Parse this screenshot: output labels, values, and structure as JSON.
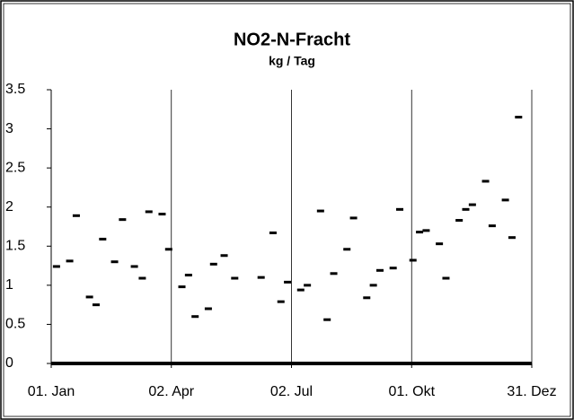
{
  "chart_data": {
    "type": "scatter",
    "title": "NO2-N-Fracht",
    "subtitle": "kg / Tag",
    "x": [
      5,
      15,
      20,
      30,
      35,
      40,
      49,
      55,
      64,
      70,
      75,
      85,
      90,
      100,
      105,
      110,
      120,
      124,
      132,
      140,
      160,
      169,
      175,
      180,
      190,
      195,
      205,
      210,
      215,
      225,
      230,
      240,
      245,
      250,
      260,
      265,
      275,
      280,
      285,
      295,
      300,
      310,
      315,
      320,
      330,
      335,
      345,
      350,
      355
    ],
    "values": [
      1.24,
      1.31,
      1.89,
      0.85,
      0.75,
      1.59,
      1.3,
      1.84,
      1.24,
      1.09,
      1.94,
      1.91,
      1.46,
      0.98,
      1.13,
      0.6,
      0.7,
      1.27,
      1.38,
      1.09,
      1.1,
      1.67,
      0.79,
      1.04,
      0.94,
      1.0,
      1.95,
      0.56,
      1.15,
      1.46,
      1.86,
      0.84,
      1.0,
      1.19,
      1.22,
      1.97,
      1.32,
      1.68,
      1.7,
      1.53,
      1.09,
      1.83,
      1.97,
      2.03,
      2.33,
      1.76,
      2.09,
      1.61,
      3.15
    ],
    "color": "#000000",
    "xlim": [
      1,
      365
    ],
    "xticks": [
      {
        "value": 1,
        "label": "01. Jan"
      },
      {
        "value": 92,
        "label": "02. Apr"
      },
      {
        "value": 183,
        "label": "02. Jul"
      },
      {
        "value": 274,
        "label": "01. Okt"
      },
      {
        "value": 365,
        "label": "31. Dez"
      }
    ],
    "ylim": [
      0,
      3.5
    ],
    "yticks": [
      0,
      0.5,
      1,
      1.5,
      2,
      2.5,
      3,
      3.5
    ],
    "xgrid": true
  }
}
